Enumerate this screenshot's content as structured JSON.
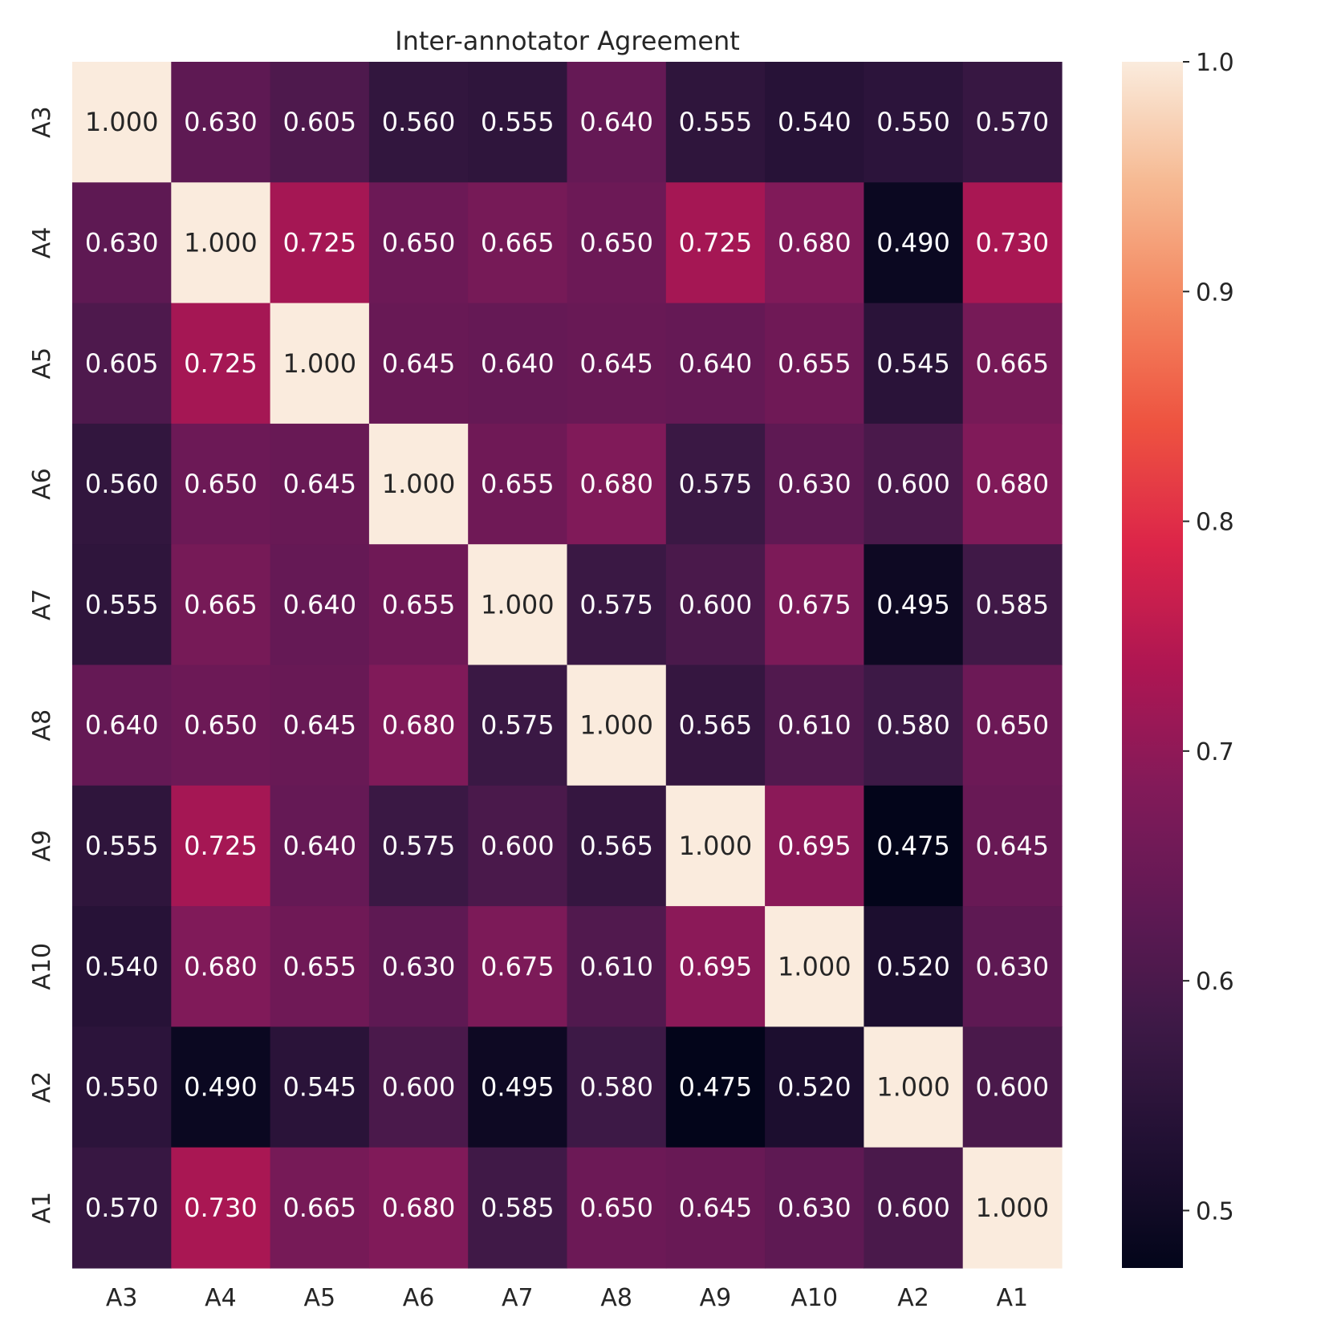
{
  "chart_data": {
    "type": "heatmap",
    "title": "Inter-annotator Agreement",
    "row_labels": [
      "A3",
      "A4",
      "A5",
      "A6",
      "A7",
      "A8",
      "A9",
      "A10",
      "A2",
      "A1"
    ],
    "col_labels": [
      "A3",
      "A4",
      "A5",
      "A6",
      "A7",
      "A8",
      "A9",
      "A10",
      "A2",
      "A1"
    ],
    "values": [
      [
        1.0,
        0.63,
        0.605,
        0.56,
        0.555,
        0.64,
        0.555,
        0.54,
        0.55,
        0.57
      ],
      [
        0.63,
        1.0,
        0.725,
        0.65,
        0.665,
        0.65,
        0.725,
        0.68,
        0.49,
        0.73
      ],
      [
        0.605,
        0.725,
        1.0,
        0.645,
        0.64,
        0.645,
        0.64,
        0.655,
        0.545,
        0.665
      ],
      [
        0.56,
        0.65,
        0.645,
        1.0,
        0.655,
        0.68,
        0.575,
        0.63,
        0.6,
        0.68
      ],
      [
        0.555,
        0.665,
        0.64,
        0.655,
        1.0,
        0.575,
        0.6,
        0.675,
        0.495,
        0.585
      ],
      [
        0.64,
        0.65,
        0.645,
        0.68,
        0.575,
        1.0,
        0.565,
        0.61,
        0.58,
        0.65
      ],
      [
        0.555,
        0.725,
        0.64,
        0.575,
        0.6,
        0.565,
        1.0,
        0.695,
        0.475,
        0.645
      ],
      [
        0.54,
        0.68,
        0.655,
        0.63,
        0.675,
        0.61,
        0.695,
        1.0,
        0.52,
        0.63
      ],
      [
        0.55,
        0.49,
        0.545,
        0.6,
        0.495,
        0.58,
        0.475,
        0.52,
        1.0,
        0.6
      ],
      [
        0.57,
        0.73,
        0.665,
        0.68,
        0.585,
        0.65,
        0.645,
        0.63,
        0.6,
        1.0
      ]
    ],
    "value_format": "3 decimals",
    "colormap": "rocket",
    "colorbar": {
      "range": [
        0.475,
        1.0
      ],
      "ticks": [
        0.5,
        0.6,
        0.7,
        0.8,
        0.9,
        1.0
      ],
      "tick_labels": [
        "0.5",
        "0.6",
        "0.7",
        "0.8",
        "0.9",
        "1.0"
      ],
      "placement": "right"
    },
    "grid": false
  }
}
